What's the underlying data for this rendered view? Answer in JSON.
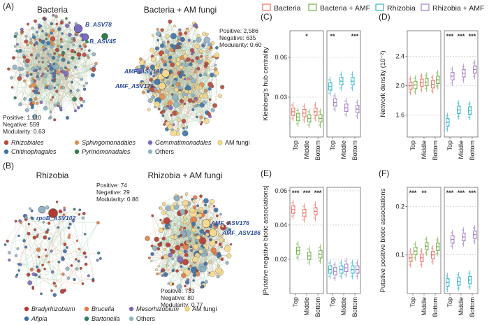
{
  "panel_labels": {
    "a": "(A)",
    "b": "(B)",
    "c": "(C)",
    "d": "(D)",
    "e": "(E)",
    "f": "(F)"
  },
  "colors": {
    "bacteria": "#ef6f5f",
    "bacteria_amf": "#6cb043",
    "rhizobia": "#2fb5c9",
    "rhizobia_amf": "#a07cc5",
    "rhizobiales": "#b9463b",
    "chitinophagales": "#3873a8",
    "sphingomonadales": "#e08f4a",
    "pyrinomonadales": "#2e7d4b",
    "gemmatimonadales": "#7a6bc0",
    "am_fungi": "#f5d98e",
    "others": "#8fb3c4",
    "bradyrhizobium": "#b33a2f",
    "afipia": "#3a6da4",
    "brucella": "#e07a45",
    "bartonella": "#2e7d5a",
    "mesorhizobium": "#7c6ab8",
    "edge_neg": "#e8a58f",
    "edge_pos": "#9fcfae",
    "node_label": "#2b4c9e",
    "star": "#333333"
  },
  "networks": {
    "bacteria": {
      "title": "Bacteria",
      "positive": "Positive: 1,110",
      "negative": "Negative: 559",
      "modularity": "Modularity: 0.63",
      "label1": "B_ASV78",
      "label2": "B_ASV45"
    },
    "bacteria_amf": {
      "title": "Bacteria + AM fungi",
      "positive": "Positive: 2,586",
      "negative": "Negative: 635",
      "modularity": "Modularity: 0.60",
      "label1": "AMF_ASV186",
      "label2": "AMF_ASV176"
    },
    "rhizobia": {
      "title": "Rhizobia",
      "positive": "Positive: 74",
      "negative": "Negative: 29",
      "modularity": "Modularity: 0.86",
      "label1": "rpoB_ASV102"
    },
    "rhizobia_amf": {
      "title": "Rhizobia + AM fungi",
      "positive": "Positive: 733",
      "negative": "Negative: 80",
      "modularity": "Modularity: 0.77",
      "label1": "AMF_ASV176",
      "label2": "AMF_ASV186"
    }
  },
  "legend_a": [
    "Rhizobiales",
    "Sphingomonadales",
    "Gemmatimonadales",
    "AM fungi",
    "Chitinophagales",
    "Pyrinomonadales",
    "Others"
  ],
  "legend_b": [
    "Bradyrhizobium",
    "Brucella",
    "Mesorhizobium",
    "AM fungi",
    "Afipia",
    "Bartonella",
    "Others"
  ],
  "top_legend": [
    "Bacteria",
    "Bacteria + AMF",
    "Rhizobia",
    "Rhizobia + AMF"
  ],
  "chart_data": [
    {
      "id": "C",
      "type": "box",
      "title": "(C)",
      "ylabel": "Kleinberg's hub centrality",
      "ylim": [
        0.0,
        0.08
      ],
      "yticks": [
        0.03,
        0.06
      ],
      "categories": [
        "Top",
        "Middle",
        "Bottom"
      ],
      "left_sig": [
        "",
        "*",
        ""
      ],
      "right_sig": [
        "**",
        "",
        "***"
      ],
      "left": {
        "series": [
          {
            "name": "Bacteria",
            "values": [
              0.019,
              0.018,
              0.019
            ]
          },
          {
            "name": "Bacteria + AMF",
            "values": [
              0.015,
              0.014,
              0.014
            ]
          }
        ]
      },
      "right": {
        "series": [
          {
            "name": "Rhizobia",
            "values": [
              0.038,
              0.042,
              0.042
            ]
          },
          {
            "name": "Rhizobia + AMF",
            "values": [
              0.026,
              0.022,
              0.021
            ]
          }
        ]
      }
    },
    {
      "id": "D",
      "type": "box",
      "title": "(D)",
      "ylabel": "Network density (10⁻²)",
      "ylim": [
        1.3,
        2.75
      ],
      "yticks": [
        1.6,
        2.0,
        2.4
      ],
      "categories": [
        "Top",
        "Middle",
        "Bottom"
      ],
      "left_sig": [
        "",
        "",
        ""
      ],
      "right_sig": [
        "***",
        "***",
        "***"
      ],
      "left": {
        "series": [
          {
            "name": "Bacteria",
            "values": [
              2.0,
              2.04,
              2.02
            ]
          },
          {
            "name": "Bacteria + AMF",
            "values": [
              2.01,
              2.05,
              2.08
            ]
          }
        ]
      },
      "right": {
        "series": [
          {
            "name": "Rhizobia",
            "values": [
              1.5,
              1.67,
              1.66
            ]
          },
          {
            "name": "Rhizobia + AMF",
            "values": [
              2.13,
              2.17,
              2.22
            ]
          }
        ]
      }
    },
    {
      "id": "E",
      "type": "box",
      "title": "(E)",
      "ylabel": "|Putative negative biotic associations|",
      "ylim": [
        0.0,
        0.062
      ],
      "yticks": [
        0.02,
        0.04,
        0.06
      ],
      "categories": [
        "Top",
        "Middle",
        "Bottom"
      ],
      "left_sig": [
        "***",
        "***",
        "***"
      ],
      "right_sig": [
        "",
        "",
        ""
      ],
      "left": {
        "series": [
          {
            "name": "Bacteria",
            "values": [
              0.049,
              0.047,
              0.048
            ]
          },
          {
            "name": "Bacteria + AMF",
            "values": [
              0.025,
              0.022,
              0.023
            ]
          }
        ]
      },
      "right": {
        "series": [
          {
            "name": "Rhizobia",
            "values": [
              0.014,
              0.014,
              0.014
            ]
          },
          {
            "name": "Rhizobia + AMF",
            "values": [
              0.013,
              0.015,
              0.014
            ]
          }
        ]
      }
    },
    {
      "id": "F",
      "type": "box",
      "title": "(F)",
      "ylabel": "Putative positive biotic associations",
      "ylim": [
        0.02,
        0.24
      ],
      "yticks": [
        0.1,
        0.2
      ],
      "categories": [
        "Top",
        "Middle",
        "Bottom"
      ],
      "left_sig": [
        "***",
        "**",
        ""
      ],
      "right_sig": [
        "***",
        "***",
        "***"
      ],
      "left": {
        "series": [
          {
            "name": "Bacteria",
            "values": [
              0.094,
              0.094,
              0.1
            ]
          },
          {
            "name": "Bacteria + AMF",
            "values": [
              0.108,
              0.118,
              0.117
            ]
          }
        ]
      },
      "right": {
        "series": [
          {
            "name": "Rhizobia",
            "values": [
              0.043,
              0.045,
              0.048
            ]
          },
          {
            "name": "Rhizobia + AMF",
            "values": [
              0.132,
              0.137,
              0.142
            ]
          }
        ]
      }
    }
  ]
}
